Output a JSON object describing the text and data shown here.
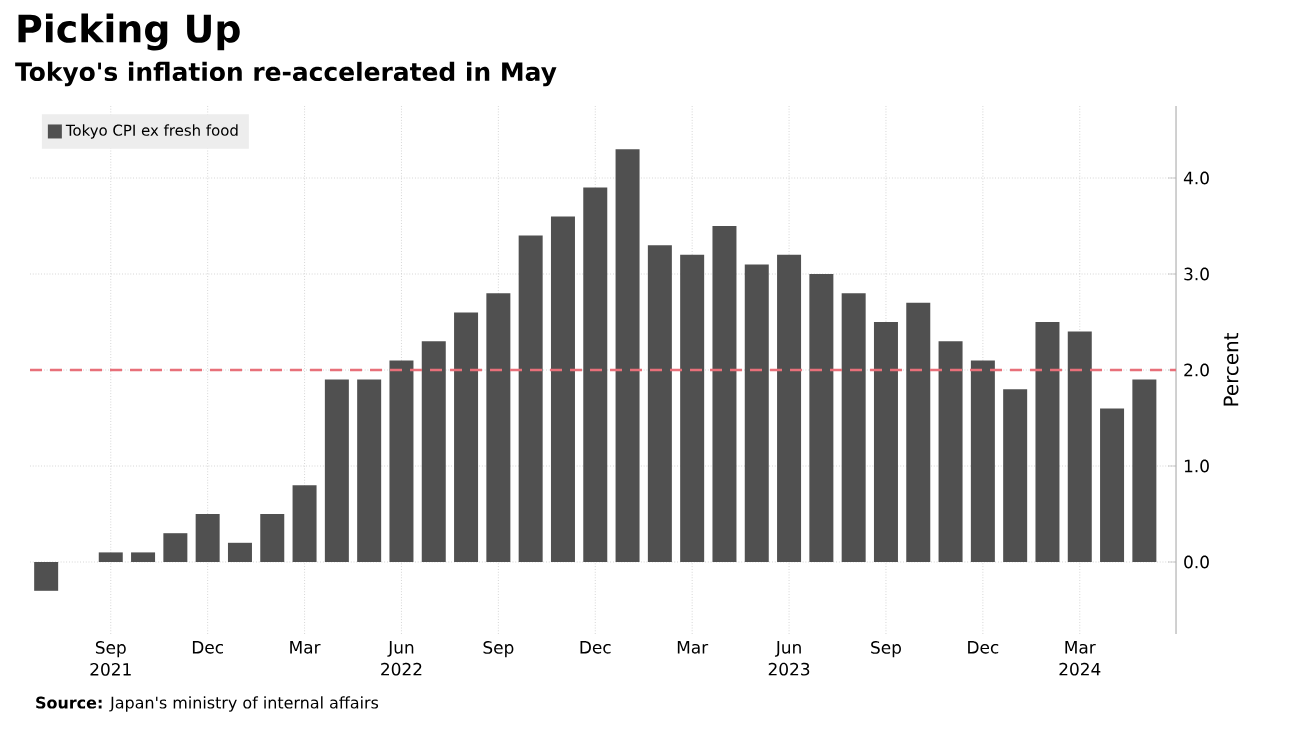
{
  "chart_data": {
    "type": "bar",
    "title": "Picking Up",
    "subtitle": "Tokyo's inflation re-accelerated in May",
    "ylabel": "Percent",
    "categories": [
      null,
      null,
      "Sep 2021",
      null,
      null,
      "Dec",
      null,
      null,
      "Mar",
      null,
      null,
      "Jun 2022",
      null,
      null,
      "Sep",
      null,
      null,
      "Dec",
      null,
      null,
      "Mar",
      null,
      null,
      "Jun 2023",
      null,
      null,
      "Sep",
      null,
      null,
      "Dec",
      null,
      null,
      "Mar 2024",
      null,
      null
    ],
    "series": [
      {
        "name": "Tokyo CPI ex fresh food",
        "color": "#505050",
        "values": [
          -0.3,
          0.0,
          0.1,
          0.1,
          0.3,
          0.5,
          0.2,
          0.5,
          0.8,
          1.9,
          1.9,
          2.1,
          2.3,
          2.6,
          2.8,
          3.4,
          3.6,
          3.9,
          4.3,
          3.3,
          3.2,
          3.5,
          3.1,
          3.2,
          3.0,
          2.8,
          2.5,
          2.7,
          2.3,
          2.1,
          1.8,
          2.5,
          2.4,
          1.6,
          1.9
        ]
      }
    ],
    "ylim": [
      -0.75,
      4.75
    ],
    "yticks": [
      {
        "value": 0,
        "label": "0.0"
      },
      {
        "value": 1,
        "label": "1.0"
      },
      {
        "value": 2,
        "label": "2.0"
      },
      {
        "value": 3,
        "label": "3.0"
      },
      {
        "value": 4,
        "label": "4.0"
      }
    ],
    "ref_lines": [
      {
        "axis": "y",
        "value": 2,
        "color": "#e8707a",
        "line_style": "dashed"
      }
    ],
    "grid": true,
    "legend": "top left",
    "annotations": [
      "**Source:** Japan's ministry of internal affairs"
    ]
  }
}
